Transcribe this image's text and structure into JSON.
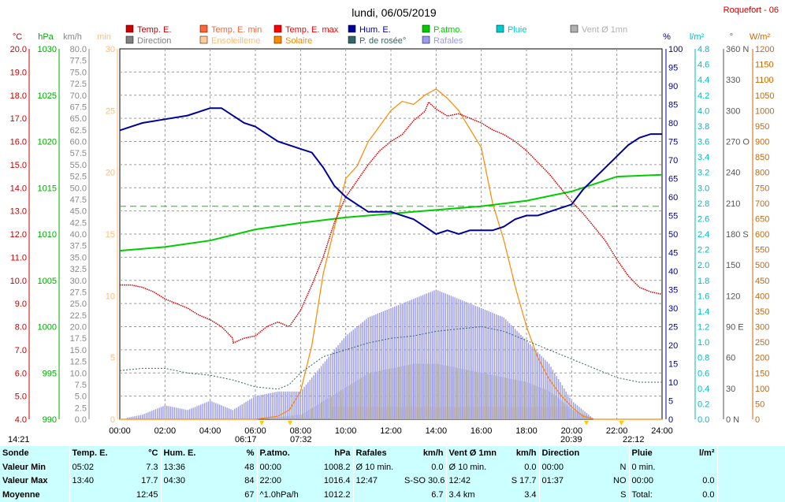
{
  "header": {
    "title": "lundi, 06/05/2019",
    "station": "Roquefort - 06",
    "sunrise_left": "14:21",
    "sunrise": "06:17",
    "sunrise2": "07:32",
    "sunset": "20:39",
    "sunset2": "22:12"
  },
  "legend": [
    {
      "label": "Temp. E.",
      "color": "#cc0000"
    },
    {
      "label": "Temp. E. min",
      "color": "#ff6633"
    },
    {
      "label": "Temp. E. max",
      "color": "#ff0000"
    },
    {
      "label": "Hum. E.",
      "color": "#000099"
    },
    {
      "label": "P.atmo.",
      "color": "#00cc00"
    },
    {
      "label": "Pluie",
      "color": "#00cccc"
    },
    {
      "label": "Vent Ø 1mn",
      "color": "#b0b0b0"
    },
    {
      "label": "Direction",
      "color": "#808080"
    },
    {
      "label": "Ensoleilleme",
      "color": "#ffcc99"
    },
    {
      "label": "Solaire",
      "color": "#ff8800"
    },
    {
      "label": "P. de rosée°",
      "color": "#336666"
    },
    {
      "label": "Rafales",
      "color": "#9999ee"
    }
  ],
  "axes": {
    "units": [
      "°C",
      "hPa",
      "km/h",
      "min",
      "%",
      "l/m²",
      "°",
      "W/m²"
    ],
    "temp": [
      "20.0",
      "19.0",
      "18.0",
      "17.0",
      "16.0",
      "15.0",
      "14.0",
      "13.0",
      "12.0",
      "11.0",
      "10.0",
      "9.0",
      "8.0",
      "7.0",
      "6.0",
      "5.0",
      "4.0"
    ],
    "pressure": [
      "1030",
      "1025",
      "1020",
      "1015",
      "1010",
      "1005",
      "1000",
      "995",
      "990"
    ],
    "wind": [
      "80.0",
      "77.5",
      "75.0",
      "72.5",
      "70.0",
      "67.5",
      "65.0",
      "62.5",
      "60.0",
      "57.5",
      "55.0",
      "52.5",
      "50.0",
      "47.5",
      "45.0",
      "42.5",
      "40.0",
      "37.5",
      "35.0",
      "32.5",
      "30.0",
      "27.5",
      "25.0",
      "22.5",
      "20.0",
      "17.5",
      "15.0",
      "12.5",
      "10.0",
      "7.5",
      "5.0",
      "2.5",
      "0.0"
    ],
    "sunshine": [
      "30",
      "25",
      "20",
      "15",
      "10",
      "5",
      "0"
    ],
    "humidity": [
      "100",
      "95",
      "90",
      "85",
      "80",
      "75",
      "70",
      "65",
      "60",
      "55",
      "50",
      "45",
      "40",
      "35",
      "30",
      "25",
      "20",
      "15",
      "10",
      "5",
      "0"
    ],
    "rain": [
      "4.8",
      "4.6",
      "4.4",
      "4.2",
      "4.0",
      "3.8",
      "3.6",
      "3.4",
      "3.2",
      "3.0",
      "2.8",
      "2.6",
      "2.4",
      "2.2",
      "2.0",
      "1.8",
      "1.6",
      "1.4",
      "1.2",
      "1.0",
      "0.8",
      "0.6",
      "0.4",
      "0.2",
      "0.0"
    ],
    "direction": [
      "360 N",
      "330",
      "300",
      "270 O",
      "240",
      "210",
      "180 S",
      "150",
      "120",
      "90 E",
      "60",
      "30",
      "0 N"
    ],
    "solar": [
      "1200",
      "1150",
      "1100",
      "1050",
      "1000",
      "950",
      "900",
      "850",
      "800",
      "750",
      "700",
      "650",
      "600",
      "550",
      "500",
      "450",
      "400",
      "350",
      "300",
      "250",
      "200",
      "150",
      "100",
      "50",
      "0"
    ],
    "time": [
      "00:00",
      "02:00",
      "04:00",
      "06:00",
      "08:00",
      "10:00",
      "12:00",
      "14:00",
      "16:00",
      "18:00",
      "20:00",
      "22:00",
      "24:00"
    ]
  },
  "chart_data": {
    "type": "line",
    "title": "lundi, 06/05/2019",
    "x_unit": "hour",
    "xlim": [
      0,
      24
    ],
    "grid": true,
    "series": [
      {
        "name": "Temp. E.",
        "unit": "°C",
        "ylim": [
          4,
          20
        ],
        "x": [
          0,
          0.5,
          1,
          1.5,
          2,
          3,
          3.5,
          4,
          4.5,
          5,
          5.02,
          5.5,
          6,
          6.5,
          7,
          7.5,
          8,
          8.5,
          9,
          9.5,
          10,
          10.5,
          11,
          11.5,
          12,
          12.5,
          13,
          13.5,
          13.67,
          14,
          14.5,
          15,
          15.5,
          16,
          16.5,
          17,
          17.5,
          18,
          18.5,
          19,
          19.5,
          20,
          20.5,
          21,
          21.5,
          22,
          22.5,
          23,
          23.5,
          24
        ],
        "y": [
          9.8,
          9.8,
          9.7,
          9.5,
          9.2,
          8.8,
          8.5,
          8.3,
          8.0,
          7.5,
          7.3,
          7.5,
          7.6,
          8.0,
          8.2,
          8.0,
          8.7,
          9.8,
          11.0,
          12.5,
          13.6,
          14.3,
          15.0,
          15.6,
          16.0,
          16.3,
          16.9,
          17.3,
          17.7,
          17.4,
          17.1,
          17.2,
          17.0,
          16.8,
          16.5,
          16.3,
          16.0,
          15.6,
          15.1,
          14.6,
          14.0,
          13.4,
          12.9,
          12.3,
          11.7,
          10.9,
          10.2,
          9.7,
          9.5,
          9.4
        ]
      },
      {
        "name": "Hum. E.",
        "unit": "%",
        "ylim": [
          0,
          100
        ],
        "x": [
          0,
          0.5,
          1,
          2,
          3,
          4,
          4.5,
          5,
          5.5,
          6,
          6.5,
          7,
          7.5,
          8,
          8.5,
          9,
          9.5,
          10,
          10.5,
          11,
          11.5,
          12,
          12.5,
          13,
          13.5,
          14,
          14.5,
          15,
          15.5,
          16,
          16.5,
          17,
          17.5,
          18,
          18.5,
          19,
          19.5,
          20,
          20.5,
          21,
          21.5,
          22,
          22.5,
          23,
          23.5,
          24
        ],
        "y": [
          78,
          79,
          80,
          81,
          82,
          84,
          84,
          82,
          80,
          79,
          77,
          75,
          74,
          73,
          72,
          68,
          63,
          60,
          58,
          56,
          56,
          56,
          55,
          54,
          52,
          50,
          51,
          50,
          51,
          51,
          51,
          52,
          54,
          55,
          55,
          56,
          57,
          58,
          62,
          65,
          68,
          71,
          74,
          76,
          77,
          77
        ]
      },
      {
        "name": "P.atmo.",
        "unit": "hPa",
        "ylim": [
          990,
          1030
        ],
        "x": [
          0,
          2,
          4,
          6,
          8,
          10,
          12,
          14,
          16,
          18,
          20,
          21,
          22,
          24
        ],
        "y": [
          1008.2,
          1008.6,
          1009.3,
          1010.5,
          1011.2,
          1011.8,
          1012.2,
          1012.6,
          1013.0,
          1013.6,
          1014.6,
          1015.4,
          1016.2,
          1016.4
        ]
      },
      {
        "name": "P. de rosée°",
        "unit": "°C",
        "ylim": [
          4,
          20
        ],
        "x": [
          0,
          1,
          2,
          3,
          4,
          5,
          6,
          7,
          7.5,
          8,
          9,
          10,
          11,
          12,
          13,
          14,
          15,
          16,
          17,
          18,
          19,
          20,
          21,
          22,
          23,
          24
        ],
        "y": [
          6.1,
          6.2,
          6.2,
          6.0,
          5.9,
          5.7,
          5.4,
          5.3,
          5.5,
          6.0,
          6.7,
          7.0,
          7.3,
          7.5,
          7.6,
          7.8,
          7.9,
          8.0,
          7.8,
          7.4,
          7.0,
          6.6,
          6.2,
          5.8,
          5.6,
          5.6
        ]
      },
      {
        "name": "Solaire",
        "unit": "W/m²",
        "ylim": [
          0,
          1200
        ],
        "x": [
          0,
          6,
          7,
          7.5,
          8,
          8.5,
          9,
          9.5,
          10,
          10.5,
          11,
          11.5,
          12,
          12.5,
          13,
          13.5,
          14,
          14.5,
          15,
          15.5,
          16,
          16.5,
          17,
          17.5,
          18,
          18.5,
          19,
          19.5,
          20,
          20.5,
          21,
          24
        ],
        "y": [
          0,
          0,
          10,
          30,
          90,
          240,
          470,
          620,
          780,
          820,
          900,
          950,
          1000,
          1030,
          1020,
          1050,
          1070,
          1040,
          1000,
          940,
          880,
          700,
          580,
          430,
          300,
          200,
          130,
          80,
          40,
          10,
          0,
          0
        ]
      },
      {
        "name": "Rafales",
        "unit": "km/h",
        "ylim": [
          0,
          80
        ],
        "x": [
          0,
          1,
          2,
          3,
          4,
          5,
          6,
          7,
          8,
          9,
          10,
          11,
          12,
          13,
          14,
          15,
          16,
          17,
          18,
          19,
          19.5,
          20,
          21,
          24
        ],
        "y": [
          0,
          1,
          3,
          2,
          4,
          2,
          5,
          6,
          6,
          12,
          18,
          22,
          24,
          26,
          28,
          26,
          24,
          22,
          17,
          12,
          8,
          4,
          0,
          0
        ]
      },
      {
        "name": "Vent Ø 1mn",
        "unit": "km/h",
        "ylim": [
          0,
          80
        ],
        "x": [
          0,
          6,
          8,
          9,
          10,
          11,
          12,
          13,
          14,
          15,
          16,
          17,
          18,
          19,
          19.5,
          20,
          21,
          24
        ],
        "y": [
          0,
          0,
          1,
          4,
          7,
          10,
          11,
          12,
          12,
          11,
          10,
          9,
          8,
          6,
          4,
          2,
          0,
          0
        ]
      },
      {
        "name": "Ensoleilleme",
        "unit": "min",
        "ylim": [
          0,
          30
        ],
        "x": [
          0,
          9.0,
          9.5,
          10,
          11,
          12,
          13,
          14,
          15,
          16,
          17,
          18,
          19,
          19.5,
          20,
          24
        ],
        "y": [
          0,
          0,
          1,
          1,
          1,
          1,
          1,
          1,
          1,
          1,
          1,
          1,
          1,
          1,
          0,
          0
        ]
      }
    ]
  },
  "summary": {
    "headers": [
      "Sonde",
      "Temp. E.",
      "°C",
      "Hum. E.",
      "%",
      "P.atmo.",
      "hPa",
      "Rafales",
      "km/h",
      "Vent Ø 1mn",
      "km/h",
      "Direction",
      "",
      "Pluie",
      "l/m²"
    ],
    "rows": [
      [
        "Valeur Min",
        "05:02",
        "7.3",
        "13:36",
        "48",
        "00:00",
        "1008.2",
        "Ø 10 min.",
        "0.0",
        "Ø 10 min.",
        "0.0",
        "00:00",
        "N",
        "0 min.",
        ""
      ],
      [
        "Valeur Max",
        "13:40",
        "17.7",
        "04:30",
        "84",
        "22:00",
        "1016.4",
        "12:47",
        "S-SO 30.6",
        "12:42",
        "S 17.7",
        "01:37",
        "NO",
        "00:00",
        "0.0"
      ],
      [
        "Moyenne",
        "",
        "12:45",
        "",
        "67",
        "^1.0hPa/h",
        "1012.2",
        "",
        "6.7",
        "3.4 km",
        "3.4",
        "",
        "S",
        "Total:",
        "0.0"
      ]
    ]
  }
}
